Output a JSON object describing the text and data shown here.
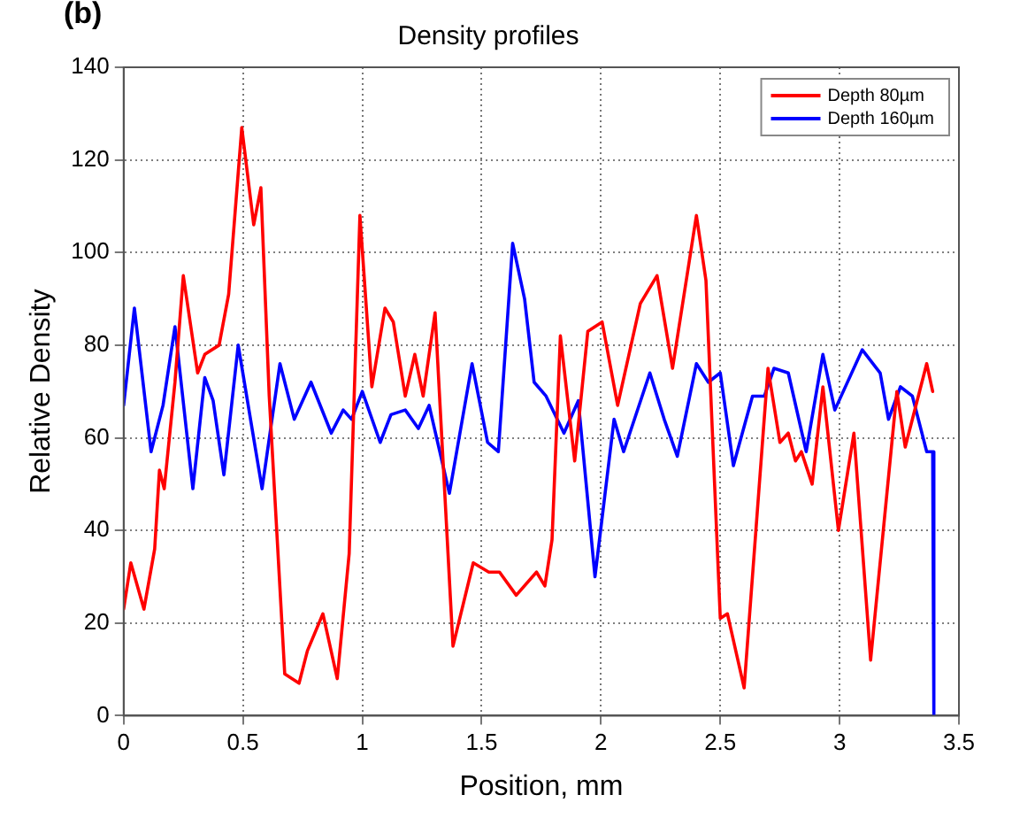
{
  "chart_data": {
    "type": "line",
    "title": "Density profiles",
    "xlabel": "Position, mm",
    "ylabel": "Relative Density",
    "annotations": [
      "(b)"
    ],
    "xlim": [
      0,
      3.5
    ],
    "xticks": [
      0,
      0.5,
      1,
      1.5,
      2,
      2.5,
      3,
      3.5
    ],
    "ylim": [
      0,
      140
    ],
    "yticks": [
      0,
      20,
      40,
      60,
      80,
      100,
      120,
      140
    ],
    "grid": true,
    "legend": "top right",
    "marker": "none",
    "line_style": "solid",
    "series": [
      {
        "name": "Depth 80µm",
        "color": "#ff0000",
        "x": [
          0,
          0.03,
          0.085,
          0.13,
          0.15,
          0.17,
          0.215,
          0.25,
          0.31,
          0.34,
          0.4,
          0.44,
          0.495,
          0.545,
          0.575,
          0.61,
          0.675,
          0.735,
          0.77,
          0.835,
          0.895,
          0.945,
          0.99,
          1.04,
          1.095,
          1.13,
          1.18,
          1.22,
          1.255,
          1.305,
          1.38,
          1.465,
          1.53,
          1.575,
          1.645,
          1.73,
          1.765,
          1.795,
          1.83,
          1.89,
          1.945,
          2.005,
          2.07,
          2.165,
          2.235,
          2.3,
          2.4,
          2.44,
          2.5,
          2.53,
          2.6,
          2.7,
          2.75,
          2.785,
          2.815,
          2.84,
          2.885,
          2.93,
          2.995,
          3.06,
          3.13,
          3.24,
          3.275,
          3.365,
          3.39
        ],
        "values": [
          23,
          33,
          23,
          36,
          53,
          49,
          72,
          95,
          74,
          78,
          80,
          91,
          127,
          106,
          114,
          69,
          9,
          7,
          14,
          22,
          8,
          35,
          108,
          71,
          88,
          85,
          69,
          78,
          69,
          87,
          15,
          33,
          31,
          31,
          26,
          31,
          28,
          38,
          82,
          55,
          83,
          85,
          67,
          89,
          95,
          75,
          108,
          94,
          21,
          22,
          6,
          75,
          59,
          61,
          55,
          57,
          50,
          71,
          40,
          61,
          12,
          70,
          58,
          76,
          70
        ]
      },
      {
        "name": "Depth 160µm",
        "color": "#0000ff",
        "x": [
          0,
          0.045,
          0.115,
          0.165,
          0.215,
          0.29,
          0.34,
          0.375,
          0.42,
          0.48,
          0.58,
          0.655,
          0.715,
          0.785,
          0.87,
          0.92,
          0.955,
          1,
          1.075,
          1.12,
          1.18,
          1.235,
          1.28,
          1.365,
          1.46,
          1.525,
          1.57,
          1.63,
          1.68,
          1.72,
          1.77,
          1.845,
          1.905,
          1.975,
          2.055,
          2.095,
          2.205,
          2.265,
          2.32,
          2.4,
          2.45,
          2.5,
          2.555,
          2.635,
          2.685,
          2.725,
          2.785,
          2.86,
          2.93,
          2.98,
          3.095,
          3.17,
          3.205,
          3.255,
          3.305,
          3.365,
          3.39,
          3.395
        ],
        "values": [
          67,
          88,
          57,
          67,
          84,
          49,
          73,
          68,
          52,
          80,
          49,
          76,
          64,
          72,
          61,
          66,
          64,
          70,
          59,
          65,
          66,
          62,
          67,
          48,
          76,
          59,
          57,
          102,
          90,
          72,
          69,
          61,
          68,
          30,
          64,
          57,
          74,
          64,
          56,
          76,
          72,
          74,
          54,
          69,
          69,
          75,
          74,
          57,
          78,
          66,
          79,
          74,
          64,
          71,
          69,
          57,
          57,
          0
        ]
      }
    ]
  }
}
